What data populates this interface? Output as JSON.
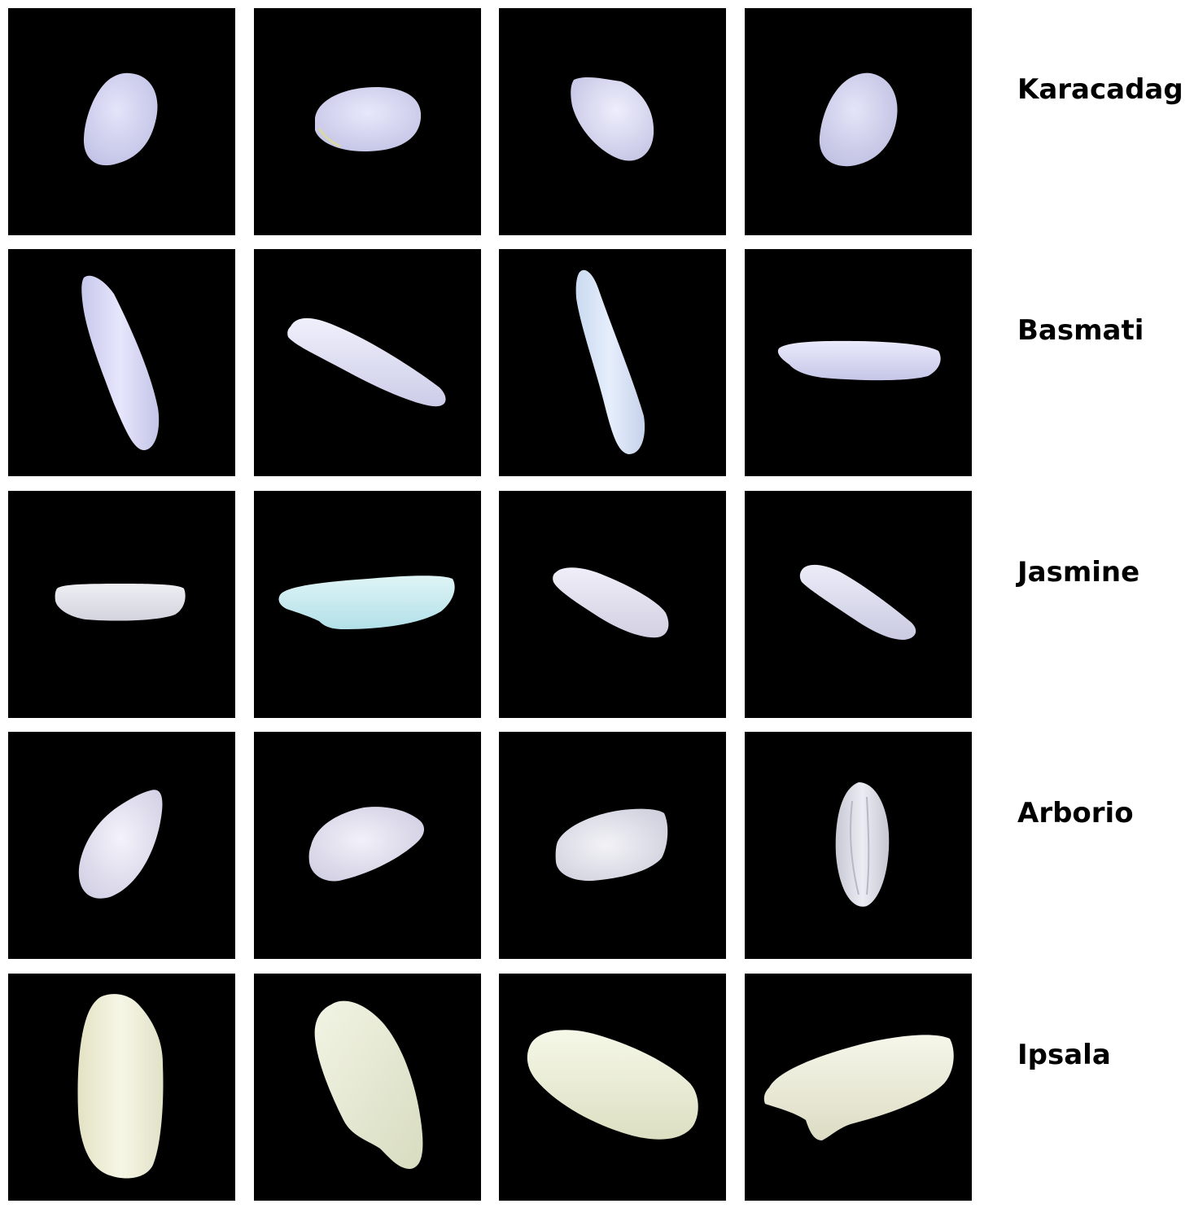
{
  "rows": [
    {
      "label": "Karacadag",
      "grain_color": "#d6d6f2",
      "grains": [
        {
          "shape": "karacadag-grain-1"
        },
        {
          "shape": "karacadag-grain-2"
        },
        {
          "shape": "karacadag-grain-3"
        },
        {
          "shape": "karacadag-grain-4"
        }
      ]
    },
    {
      "label": "Basmati",
      "grain_color": "#dcdcf6",
      "grains": [
        {
          "shape": "basmati-grain-1"
        },
        {
          "shape": "basmati-grain-2"
        },
        {
          "shape": "basmati-grain-3"
        },
        {
          "shape": "basmati-grain-4"
        }
      ]
    },
    {
      "label": "Jasmine",
      "grain_color": "#e2e2ee",
      "grains": [
        {
          "shape": "jasmine-grain-1"
        },
        {
          "shape": "jasmine-grain-2"
        },
        {
          "shape": "jasmine-grain-3"
        },
        {
          "shape": "jasmine-grain-4"
        }
      ]
    },
    {
      "label": "Arborio",
      "grain_color": "#e6e4f0",
      "grains": [
        {
          "shape": "arborio-grain-1"
        },
        {
          "shape": "arborio-grain-2"
        },
        {
          "shape": "arborio-grain-3"
        },
        {
          "shape": "arborio-grain-4"
        }
      ]
    },
    {
      "label": "Ipsala",
      "grain_color": "#f1f2e0",
      "grains": [
        {
          "shape": "ipsala-grain-1"
        },
        {
          "shape": "ipsala-grain-2"
        },
        {
          "shape": "ipsala-grain-3"
        },
        {
          "shape": "ipsala-grain-4"
        }
      ]
    }
  ],
  "colors": {
    "tile_background": "#000000",
    "page_background": "#ffffff",
    "label_color": "#000000"
  }
}
